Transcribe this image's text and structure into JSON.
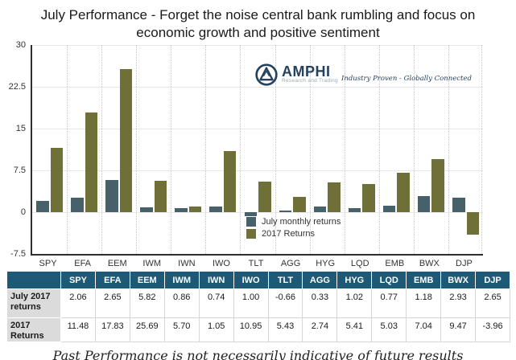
{
  "title": "July Performance - Forget the noise central bank rumbling and focus on economic growth and positive sentiment",
  "logo": {
    "name": "AMPHI",
    "subtitle": "Research and Trading",
    "tagline": "Industry Proven - Globally Connected",
    "color": "#24425c"
  },
  "chart_data": {
    "type": "bar",
    "categories": [
      "SPY",
      "EFA",
      "EEM",
      "IWM",
      "IWN",
      "IWO",
      "TLT",
      "AGG",
      "HYG",
      "LQD",
      "EMB",
      "BWX",
      "DJP"
    ],
    "series": [
      {
        "name": "July monthly returns",
        "color": "#47616b",
        "values": [
          2.06,
          2.65,
          5.82,
          0.86,
          0.74,
          1.0,
          -0.66,
          0.33,
          1.02,
          0.77,
          1.18,
          2.93,
          2.65
        ]
      },
      {
        "name": "2017 Returns",
        "color": "#6f7038",
        "values": [
          11.48,
          17.83,
          25.69,
          5.7,
          1.05,
          10.95,
          5.43,
          2.74,
          5.41,
          5.03,
          7.04,
          9.47,
          -3.96
        ]
      }
    ],
    "title": "July Performance - Forget the noise central bank rumbling and focus on economic growth and positive sentiment",
    "xlabel": "",
    "ylabel": "",
    "ylim": [
      -7.5,
      30
    ],
    "yticks": [
      30,
      22.5,
      15,
      7.5,
      0,
      -7.5
    ],
    "grid": true,
    "legend_position": "inside-bottom-center"
  },
  "table": {
    "columns": [
      "",
      "SPY",
      "EFA",
      "EEM",
      "IWM",
      "IWN",
      "IWO",
      "TLT",
      "AGG",
      "HYG",
      "LQD",
      "EMB",
      "BWX",
      "DJP"
    ],
    "rows": [
      {
        "label": "July 2017 returns",
        "values": [
          "2.06",
          "2.65",
          "5.82",
          "0.86",
          "0.74",
          "1.00",
          "-0.66",
          "0.33",
          "1.02",
          "0.77",
          "1.18",
          "2.93",
          "2.65"
        ]
      },
      {
        "label": "2017 Returns",
        "values": [
          "11.48",
          "17.83",
          "25.69",
          "5.70",
          "1.05",
          "10.95",
          "5.43",
          "2.74",
          "5.41",
          "5.03",
          "7.04",
          "9.47",
          "-3.96"
        ]
      }
    ]
  },
  "footer": {
    "caption": "Past Performance is not necessarily indicative of future results"
  },
  "colors": {
    "july_bar": "#47616b",
    "returns_2017_bar": "#6f7038",
    "table_header_bg": "#1e5a77",
    "row_label_bg": "#dbdbdb",
    "axis": "#2f2f2f"
  }
}
